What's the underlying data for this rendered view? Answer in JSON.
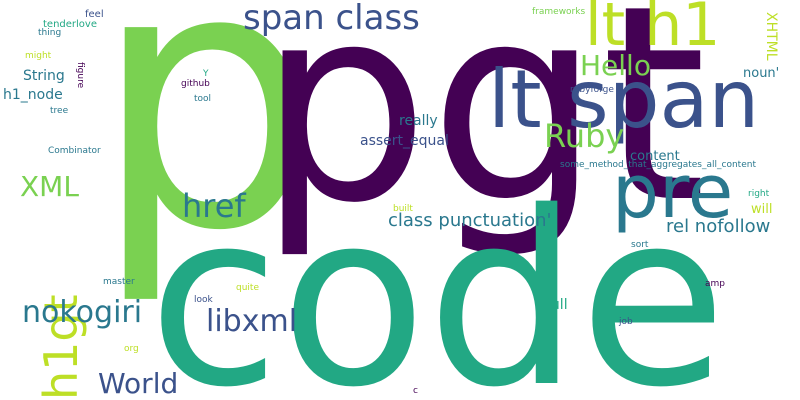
{
  "words": {
    "pgt": {
      "text": "pgt",
      "color": "#440154"
    },
    "p_big": {
      "text": "p",
      "color": "#7ad151"
    },
    "code": {
      "text": "code",
      "color": "#22a884"
    },
    "lt_span": {
      "text": "lt span",
      "color": "#3b528b"
    },
    "lt_h1": {
      "text": "lt h1",
      "color": "#bddf26"
    },
    "span_class": {
      "text": "span class",
      "color": "#3b528b"
    },
    "pre": {
      "text": "pre",
      "color": "#2a788e"
    },
    "hello": {
      "text": "Hello",
      "color": "#7ad151"
    },
    "ruby": {
      "text": "Ruby",
      "color": "#7ad151"
    },
    "xml": {
      "text": "XML",
      "color": "#7ad151"
    },
    "href": {
      "text": "href",
      "color": "#2a788e"
    },
    "h1gt": {
      "text": "h1gt",
      "color": "#bddf26"
    },
    "nokogiri": {
      "text": "nokogiri",
      "color": "#2a788e"
    },
    "libxml": {
      "text": "libxml",
      "color": "#3b528b"
    },
    "world": {
      "text": "World",
      "color": "#3b528b"
    },
    "class_punct": {
      "text": "class punctuation'",
      "color": "#2a788e"
    },
    "rel_nofollow": {
      "text": "rel nofollow",
      "color": "#2a788e"
    },
    "string": {
      "text": "String",
      "color": "#2a788e"
    },
    "h1_node": {
      "text": "h1_node",
      "color": "#2a788e"
    },
    "really": {
      "text": "really",
      "color": "#2a788e"
    },
    "assert_equal": {
      "text": "assert_equal",
      "color": "#3b528b"
    },
    "content": {
      "text": "content",
      "color": "#2a788e"
    },
    "noun": {
      "text": "noun'",
      "color": "#2a788e"
    },
    "xhtml": {
      "text": "XHTML",
      "color": "#bddf26"
    },
    "full": {
      "text": "full",
      "color": "#22a884"
    },
    "will": {
      "text": "will",
      "color": "#bddf26"
    },
    "some_method": {
      "text": "some_method_that_aggregates_all_content",
      "color": "#2a788e"
    },
    "right": {
      "text": "right",
      "color": "#22a884"
    },
    "rubyforge": {
      "text": "rubyforge",
      "color": "#3b528b"
    },
    "frameworks": {
      "text": "frameworks",
      "color": "#7ad151"
    },
    "feel": {
      "text": "feel",
      "color": "#3b528b"
    },
    "tenderlove": {
      "text": "tenderlove",
      "color": "#22a884"
    },
    "thing": {
      "text": "thing",
      "color": "#2a788e"
    },
    "might": {
      "text": "might",
      "color": "#bddf26"
    },
    "figure": {
      "text": "figure",
      "color": "#440154"
    },
    "y": {
      "text": "Y",
      "color": "#22a884"
    },
    "github": {
      "text": "github",
      "color": "#440154"
    },
    "tool": {
      "text": "tool",
      "color": "#2a788e"
    },
    "tree": {
      "text": "tree",
      "color": "#2a788e"
    },
    "combinator": {
      "text": "Combinator",
      "color": "#2a788e"
    },
    "built": {
      "text": "built",
      "color": "#bddf26"
    },
    "sort": {
      "text": "sort",
      "color": "#2a788e"
    },
    "master": {
      "text": "master",
      "color": "#2a788e"
    },
    "quite": {
      "text": "quite",
      "color": "#bddf26"
    },
    "look": {
      "text": "look",
      "color": "#3b528b"
    },
    "amp": {
      "text": "amp",
      "color": "#440154"
    },
    "job": {
      "text": "job",
      "color": "#3b528b"
    },
    "org": {
      "text": "org",
      "color": "#bddf26"
    },
    "c": {
      "text": "c",
      "color": "#440154"
    }
  }
}
